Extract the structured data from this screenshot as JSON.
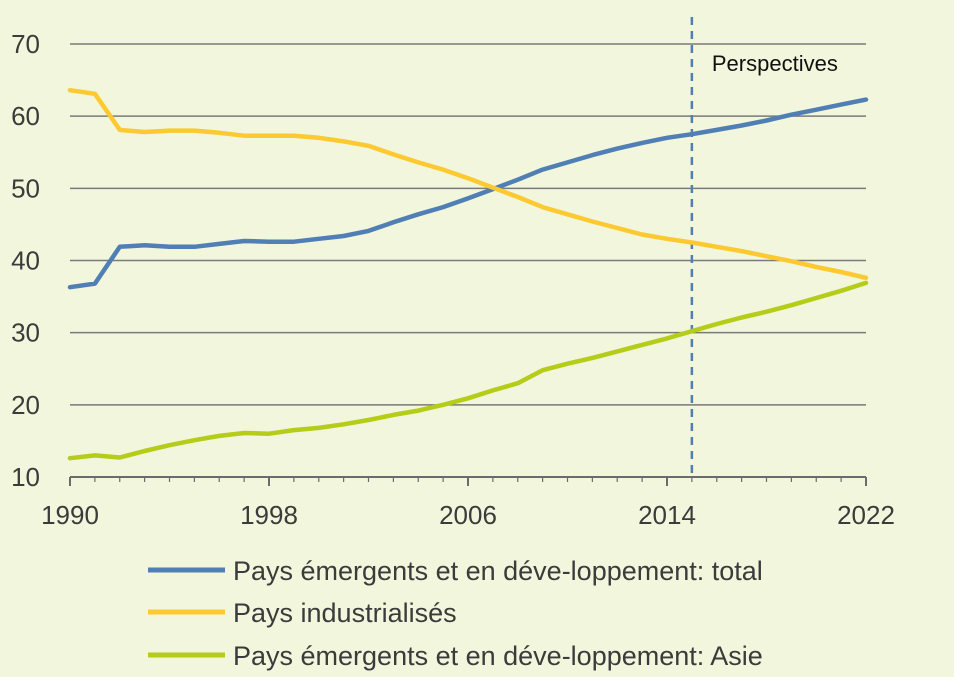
{
  "chart_data": {
    "type": "line",
    "title": "",
    "xlabel": "",
    "ylabel": "",
    "xlim": [
      1990,
      2022
    ],
    "ylim": [
      10,
      70
    ],
    "x_ticks": [
      "1990",
      "1998",
      "2006",
      "2014",
      "2022"
    ],
    "y_ticks": [
      "10",
      "20",
      "30",
      "40",
      "50",
      "60",
      "70"
    ],
    "grid": "horizontal",
    "legend_position": "bottom",
    "annotation": {
      "label": "Perspectives",
      "x": 2015
    },
    "x": [
      1990,
      1991,
      1992,
      1993,
      1994,
      1995,
      1996,
      1997,
      1998,
      1999,
      2000,
      2001,
      2002,
      2003,
      2004,
      2005,
      2006,
      2007,
      2008,
      2009,
      2010,
      2011,
      2012,
      2013,
      2014,
      2015,
      2016,
      2017,
      2018,
      2019,
      2020,
      2021,
      2022
    ],
    "series": [
      {
        "name": "Pays émergents et en déve-loppement: total",
        "color": "#4f7fb5",
        "values": [
          36.3,
          36.8,
          41.9,
          42.1,
          41.9,
          41.9,
          42.3,
          42.7,
          42.6,
          42.6,
          43.0,
          43.4,
          44.1,
          45.3,
          46.4,
          47.4,
          48.6,
          49.9,
          51.2,
          52.6,
          53.6,
          54.6,
          55.5,
          56.3,
          57.0,
          57.5,
          58.1,
          58.7,
          59.4,
          60.2,
          60.9,
          61.6,
          62.3
        ]
      },
      {
        "name": "Pays industrialisés",
        "color": "#fcc930",
        "values": [
          63.6,
          63.1,
          58.1,
          57.8,
          58.0,
          58.0,
          57.7,
          57.3,
          57.3,
          57.3,
          57.0,
          56.5,
          55.9,
          54.7,
          53.6,
          52.6,
          51.4,
          50.1,
          48.8,
          47.4,
          46.4,
          45.4,
          44.5,
          43.6,
          43.0,
          42.5,
          41.9,
          41.3,
          40.6,
          39.9,
          39.1,
          38.4,
          37.6
        ]
      },
      {
        "name": "Pays émergents et en déve-loppement: Asie",
        "color": "#b5cc18",
        "values": [
          12.6,
          13.0,
          12.7,
          13.6,
          14.4,
          15.1,
          15.7,
          16.1,
          16.0,
          16.5,
          16.8,
          17.3,
          17.9,
          18.6,
          19.2,
          20.0,
          20.9,
          22.0,
          23.0,
          24.8,
          25.7,
          26.5,
          27.4,
          28.3,
          29.2,
          30.2,
          31.2,
          32.1,
          32.9,
          33.8,
          34.8,
          35.8,
          36.9
        ]
      }
    ]
  }
}
